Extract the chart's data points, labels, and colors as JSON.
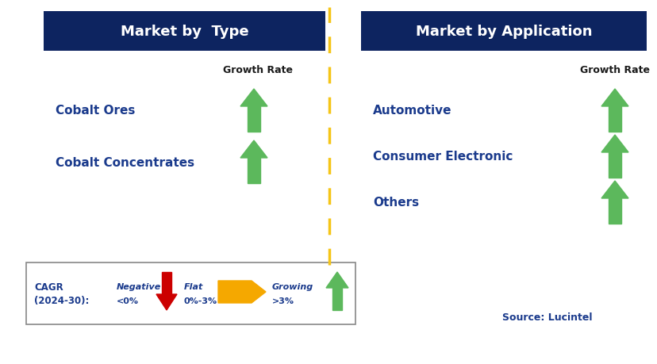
{
  "bg_color": "#ffffff",
  "header_color": "#0d2460",
  "header_text_color": "#ffffff",
  "label_color": "#1a3a8c",
  "divider_color": "#f5c518",
  "arrow_green": "#5cb85c",
  "arrow_red": "#cc0000",
  "arrow_yellow": "#f5a800",
  "left_header": "Market by  Type",
  "right_header": "Market by Application",
  "growth_rate_label": "Growth Rate",
  "left_items": [
    "Cobalt Ores",
    "Cobalt Concentrates"
  ],
  "right_items": [
    "Automotive",
    "Consumer Electronic",
    "Others"
  ],
  "legend_label_line1": "CAGR",
  "legend_label_line2": "(2024-30):",
  "legend_negative_top": "Negative",
  "legend_negative_bot": "<0%",
  "legend_flat_top": "Flat",
  "legend_flat_bot": "0%-3%",
  "legend_growing_top": "Growing",
  "legend_growing_bot": ">3%",
  "source_text": "Source: Lucintel",
  "fig_w": 8.29,
  "fig_h": 4.6,
  "dpi": 100
}
